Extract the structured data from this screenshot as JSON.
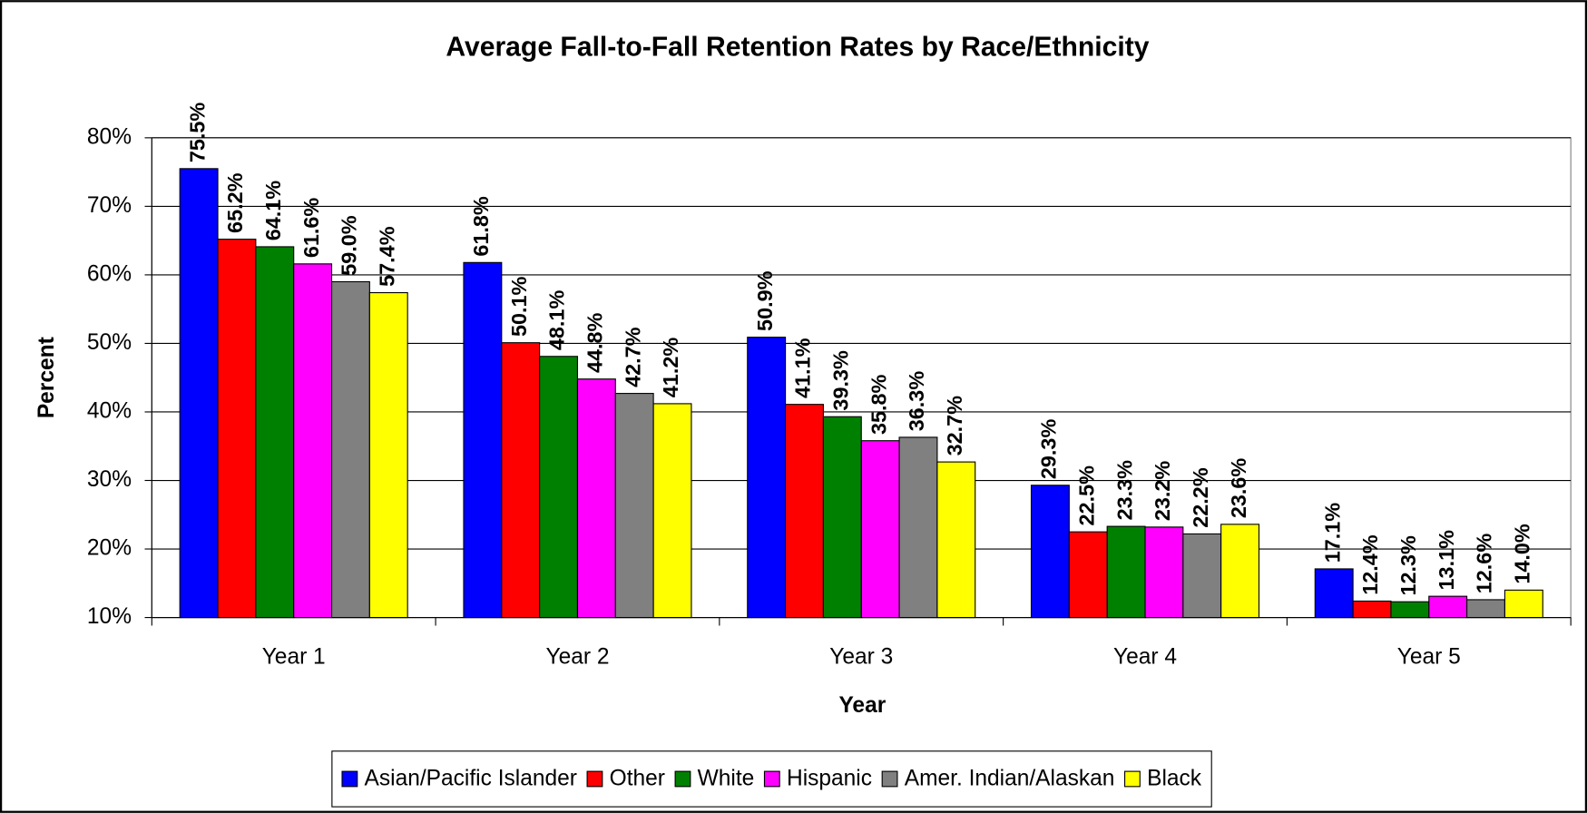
{
  "chart_data": {
    "type": "bar",
    "title": "Average Fall-to-Fall Retention Rates by Race/Ethnicity",
    "x_label": "Year",
    "y_label": "Percent",
    "categories": [
      "Year 1",
      "Year 2",
      "Year 3",
      "Year 4",
      "Year 5"
    ],
    "series": [
      {
        "name": "Asian/Pacific Islander",
        "color": "#0000ff",
        "values": [
          75.5,
          61.8,
          50.9,
          29.3,
          17.1
        ],
        "value_labels": [
          "75.5%",
          "61.8%",
          "50.9%",
          "29.3%",
          "17.1%"
        ]
      },
      {
        "name": "Other",
        "color": "#ff0000",
        "values": [
          65.2,
          50.1,
          41.1,
          22.5,
          12.4
        ],
        "value_labels": [
          "65.2%",
          "50.1%",
          "41.1%",
          "22.5%",
          "12.4%"
        ]
      },
      {
        "name": "White",
        "color": "#008000",
        "values": [
          64.1,
          48.1,
          39.3,
          23.3,
          12.3
        ],
        "value_labels": [
          "64.1%",
          "48.1%",
          "39.3%",
          "23.3%",
          "12.3%"
        ]
      },
      {
        "name": "Hispanic",
        "color": "#ff00ff",
        "values": [
          61.6,
          44.8,
          35.8,
          23.2,
          13.1
        ],
        "value_labels": [
          "61.6%",
          "44.8%",
          "35.8%",
          "23.2%",
          "13.1%"
        ]
      },
      {
        "name": "Amer. Indian/Alaskan",
        "color": "#808080",
        "values": [
          59.0,
          42.7,
          36.3,
          22.2,
          12.6
        ],
        "value_labels": [
          "59.0%",
          "42.7%",
          "36.3%",
          "22.2%",
          "12.6%"
        ]
      },
      {
        "name": "Black",
        "color": "#ffff00",
        "values": [
          57.4,
          41.2,
          32.7,
          23.6,
          14.0
        ],
        "value_labels": [
          "57.4%",
          "41.2%",
          "32.7%",
          "23.6%",
          "14.0%"
        ]
      }
    ],
    "ylim": [
      10,
      80
    ],
    "yticks": [
      {
        "value": 10,
        "label": "10%"
      },
      {
        "value": 20,
        "label": "20%"
      },
      {
        "value": 30,
        "label": "30%"
      },
      {
        "value": 40,
        "label": "40%"
      },
      {
        "value": 50,
        "label": "50%"
      },
      {
        "value": 60,
        "label": "60%"
      },
      {
        "value": 70,
        "label": "70%"
      },
      {
        "value": 80,
        "label": "80%"
      }
    ],
    "grid": true,
    "legend": "bottom"
  }
}
